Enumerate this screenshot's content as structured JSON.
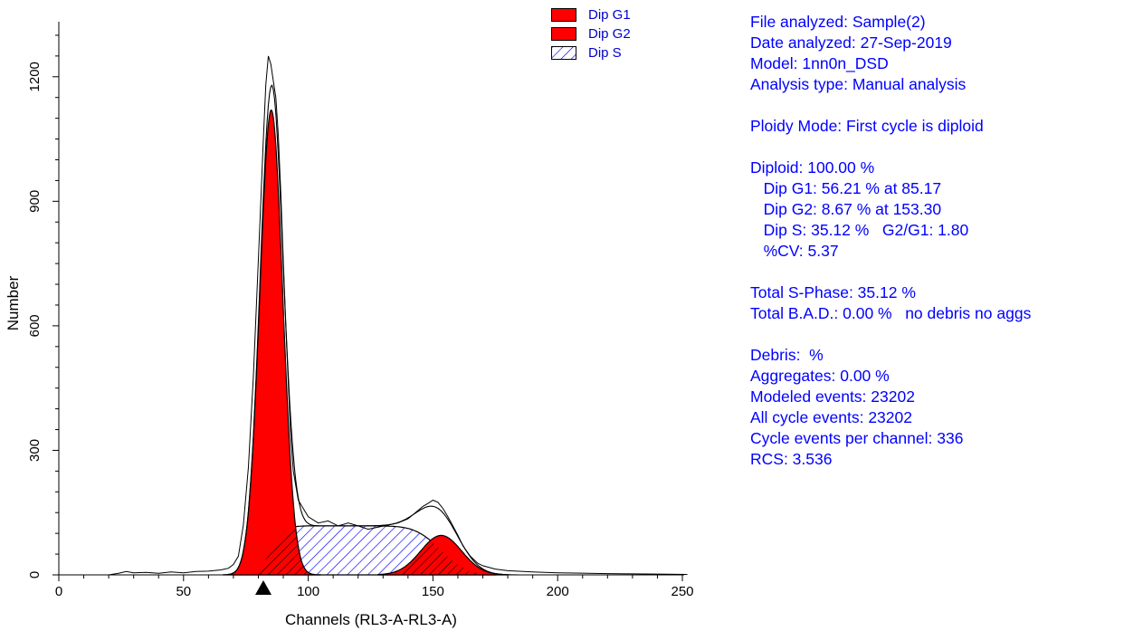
{
  "chart_data": {
    "type": "area",
    "xlabel": "Channels (RL3-A-RL3-A)",
    "ylabel": "Number",
    "x_ticks": [
      0,
      50,
      100,
      150,
      200,
      250
    ],
    "y_ticks": [
      0,
      300,
      600,
      900,
      1200
    ],
    "xlim": [
      0,
      250
    ],
    "ylim": [
      0,
      1350
    ],
    "marker_channel": 82,
    "series": [
      {
        "name": "Dip G1",
        "style": "solid",
        "color": "#ff0000",
        "peak_channel": 85.17,
        "peak_height": 1120,
        "sd": 4.58
      },
      {
        "name": "Dip G2",
        "style": "solid",
        "color": "#ff0000",
        "peak_channel": 153.3,
        "peak_height": 95,
        "sd": 8.2
      },
      {
        "name": "Dip S",
        "style": "hatch",
        "color": "#0000ff",
        "start": 85.17,
        "end": 153.3,
        "level": 118
      }
    ],
    "histogram": {
      "x": [
        0,
        20,
        24,
        27,
        30,
        35,
        40,
        45,
        50,
        55,
        60,
        65,
        68,
        70,
        72,
        74,
        76,
        78,
        80,
        81,
        82,
        83,
        84,
        85,
        86,
        87,
        88,
        89,
        90,
        91,
        92,
        93,
        94,
        96,
        98,
        100,
        104,
        108,
        112,
        116,
        120,
        124,
        128,
        132,
        136,
        140,
        144,
        146,
        148,
        150,
        152,
        154,
        156,
        158,
        160,
        162,
        165,
        168,
        170,
        175,
        180,
        190,
        200,
        220,
        240,
        252
      ],
      "y": [
        0,
        0,
        4,
        8,
        5,
        6,
        4,
        7,
        5,
        8,
        9,
        12,
        16,
        25,
        45,
        120,
        260,
        480,
        760,
        900,
        1050,
        1180,
        1250,
        1230,
        1190,
        1150,
        1060,
        920,
        760,
        600,
        460,
        330,
        250,
        180,
        160,
        140,
        125,
        130,
        118,
        125,
        118,
        110,
        115,
        120,
        125,
        135,
        155,
        165,
        172,
        180,
        175,
        160,
        140,
        118,
        95,
        70,
        45,
        28,
        22,
        14,
        10,
        7,
        5,
        3,
        2,
        1
      ]
    }
  },
  "legend": [
    {
      "label": "Dip G1",
      "style": "solid"
    },
    {
      "label": "Dip G2",
      "style": "solid"
    },
    {
      "label": "Dip S",
      "style": "hatch"
    }
  ],
  "report": {
    "lines": [
      "File analyzed: Sample(2)",
      "Date analyzed: 27-Sep-2019",
      "Model: 1nn0n_DSD",
      "Analysis type: Manual analysis",
      "",
      "Ploidy Mode: First cycle is diploid",
      "",
      "Diploid: 100.00 %",
      "   Dip G1: 56.21 % at 85.17",
      "   Dip G2: 8.67 % at 153.30",
      "   Dip S: 35.12 %   G2/G1: 1.80",
      "   %CV: 5.37",
      "",
      "Total S-Phase: 35.12 %",
      "Total B.A.D.: 0.00 %   no debris no aggs",
      "",
      "Debris:  %",
      "Aggregates: 0.00 %",
      "Modeled events: 23202",
      "All cycle events: 23202",
      "Cycle events per channel: 336",
      "RCS: 3.536"
    ]
  }
}
